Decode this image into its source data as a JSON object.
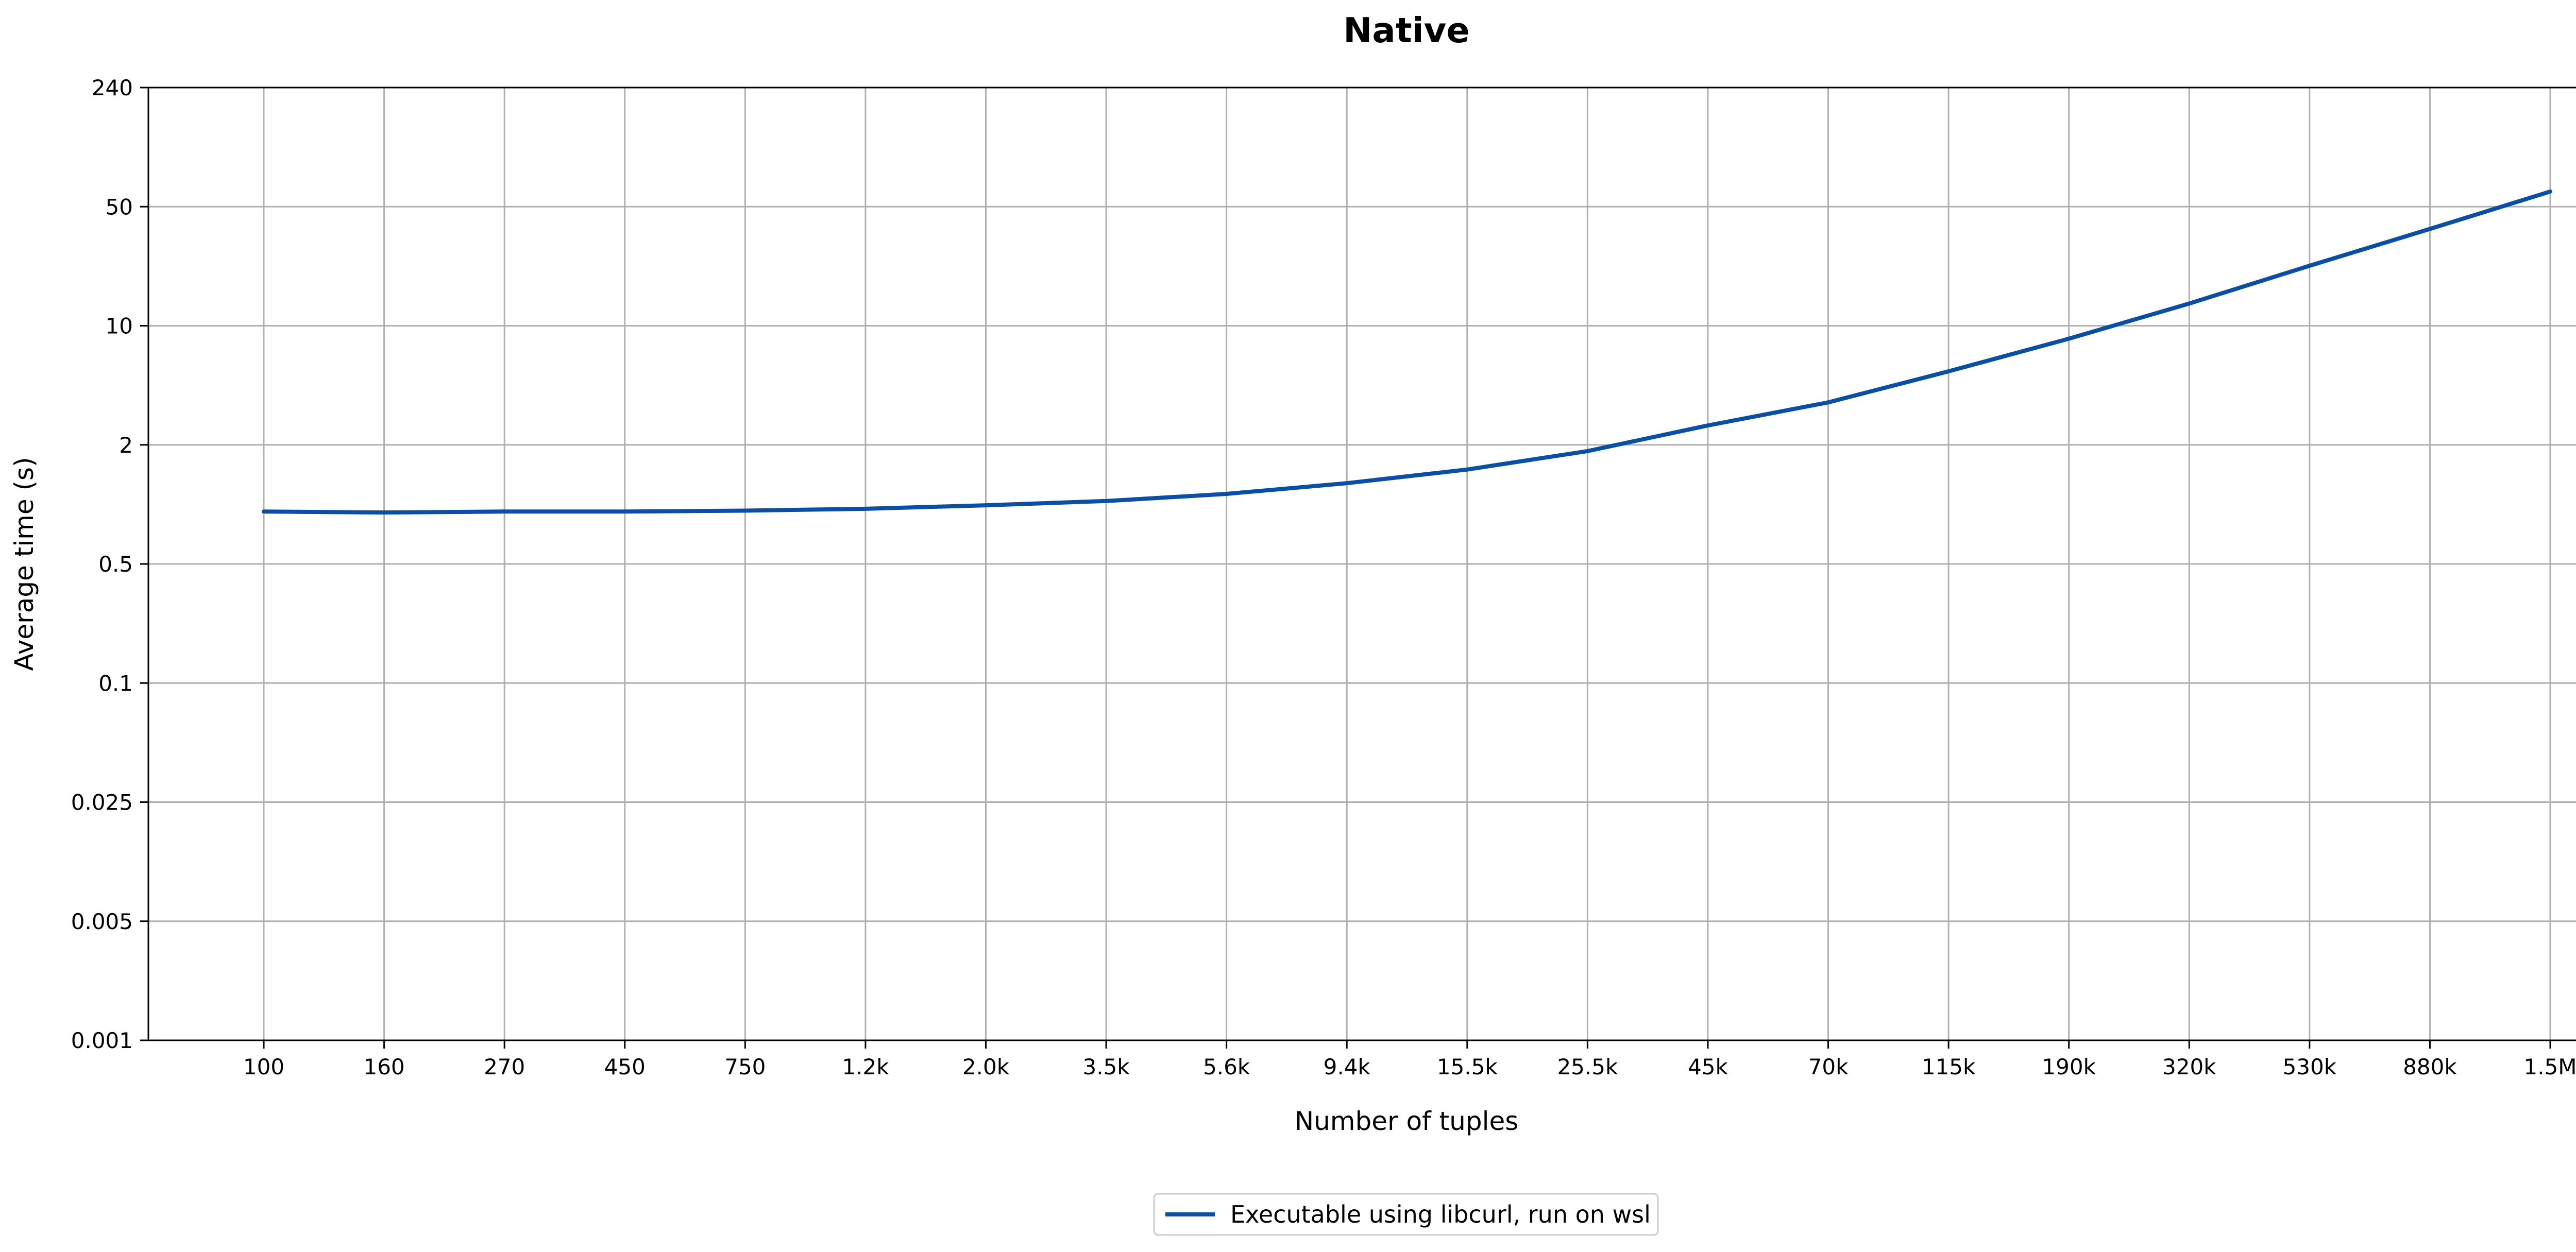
{
  "chart_data": {
    "type": "line",
    "title": "Native",
    "xlabel": "Number of tuples",
    "ylabel": "Average time (s)",
    "yscale": "log",
    "ylim": [
      0.001,
      240
    ],
    "grid": true,
    "legend_position": "bottom-center",
    "x_ticks": [
      "100",
      "160",
      "270",
      "450",
      "750",
      "1.2k",
      "2.0k",
      "3.5k",
      "5.6k",
      "9.4k",
      "15.5k",
      "25.5k",
      "45k",
      "70k",
      "115k",
      "190k",
      "320k",
      "530k",
      "880k",
      "1.5M"
    ],
    "y_ticks": [
      "240",
      "50",
      "10",
      "2",
      "0.5",
      "0.1",
      "0.025",
      "0.005",
      "0.001"
    ],
    "y_tick_values": [
      240,
      50,
      10,
      2,
      0.5,
      0.1,
      0.025,
      0.005,
      0.001
    ],
    "series": [
      {
        "name": "Executable using libcurl, run on wsl",
        "color": "#0a4fa3",
        "x": [
          "100",
          "160",
          "270",
          "450",
          "750",
          "1.2k",
          "2.0k",
          "3.5k",
          "5.6k",
          "9.4k",
          "15.5k",
          "25.5k",
          "45k",
          "70k",
          "115k",
          "190k",
          "320k",
          "530k",
          "880k",
          "1.5M"
        ],
        "values": [
          0.92,
          0.91,
          0.92,
          0.92,
          0.93,
          0.95,
          0.99,
          1.04,
          1.13,
          1.28,
          1.5,
          1.86,
          2.6,
          3.55,
          5.4,
          8.4,
          13.5,
          22.5,
          37.0,
          61.0
        ]
      }
    ]
  }
}
